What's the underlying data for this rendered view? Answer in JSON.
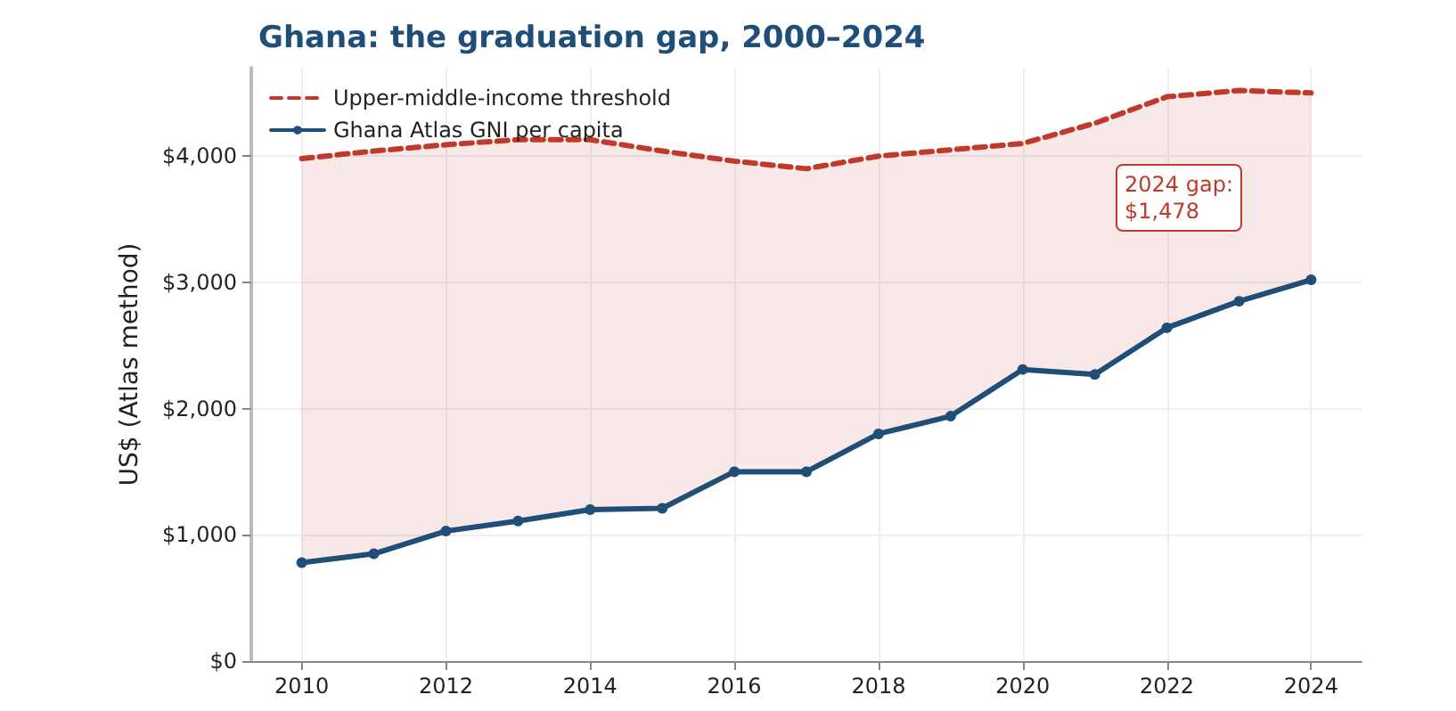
{
  "chart_data": {
    "type": "line",
    "title": "Ghana: the graduation gap, 2000–2024",
    "ylabel": "US$ (Atlas method)",
    "x": [
      2010,
      2011,
      2012,
      2013,
      2014,
      2015,
      2016,
      2017,
      2018,
      2019,
      2020,
      2021,
      2022,
      2023,
      2024
    ],
    "series": [
      {
        "name": "Upper-middle-income threshold",
        "color": "#c0392b",
        "line_style": "dashed",
        "marker": "none",
        "values": [
          3980,
          4040,
          4090,
          4130,
          4130,
          4040,
          3960,
          3900,
          4000,
          4050,
          4100,
          4260,
          4470,
          4520,
          4500
        ],
        "lower": [
          780,
          850,
          1030,
          1110,
          1200,
          1210,
          1500,
          1500,
          1800,
          1940,
          2310,
          2270,
          2640,
          2850,
          3020
        ],
        "upper": [
          3980,
          4040,
          4090,
          4130,
          4130,
          4040,
          3960,
          3900,
          4000,
          4050,
          4100,
          4260,
          4470,
          4520,
          4500
        ]
      },
      {
        "name": "Ghana Atlas GNI per capita",
        "color": "#1f4e79",
        "line_style": "solid",
        "marker": "circle",
        "values": [
          780,
          850,
          1030,
          1110,
          1200,
          1210,
          1500,
          1500,
          1800,
          1940,
          2310,
          2270,
          2640,
          2850,
          3020
        ]
      }
    ],
    "annotations": [
      "2024 gap:\n$1,478"
    ],
    "xlim": [
      2009.3,
      2024.7
    ],
    "xticks": [
      2010,
      2012,
      2014,
      2016,
      2018,
      2020,
      2022,
      2024
    ],
    "ylim": [
      0,
      4700
    ],
    "yticks": [
      {
        "value": 0,
        "label": "$0"
      },
      {
        "value": 1000,
        "label": "$1,000"
      },
      {
        "value": 2000,
        "label": "$2,000"
      },
      {
        "value": 3000,
        "label": "$3,000"
      },
      {
        "value": 4000,
        "label": "$4,000"
      }
    ],
    "grid": true,
    "legend": "top left"
  }
}
